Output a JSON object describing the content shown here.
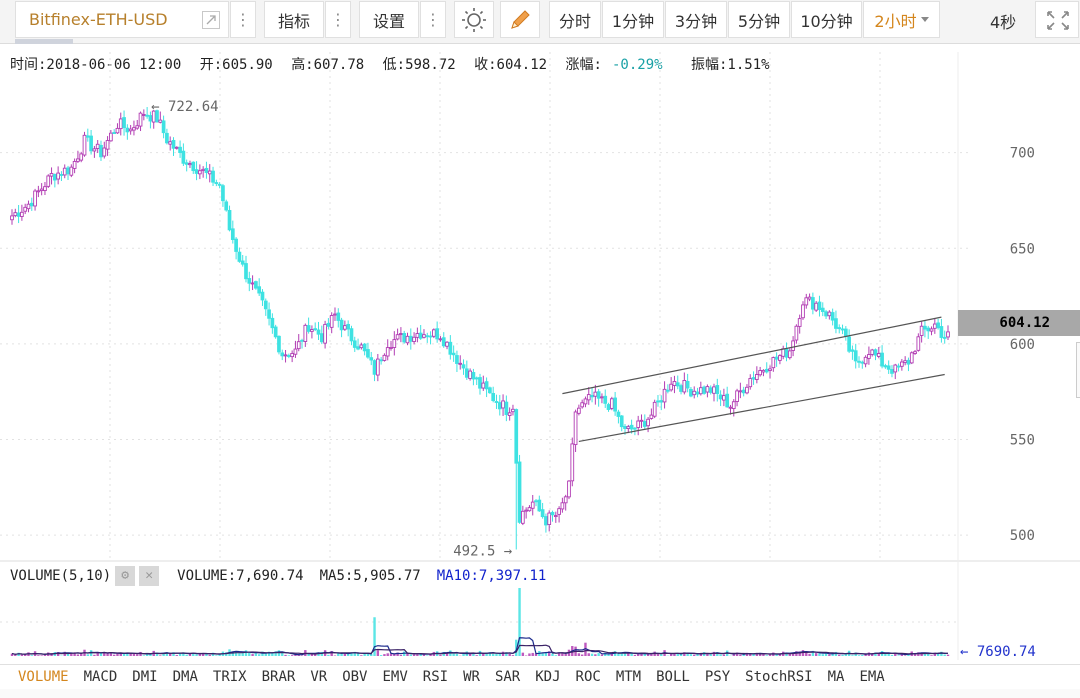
{
  "toolbar": {
    "symbol": "Bitfinex-ETH-USD",
    "indicators_label": "指标",
    "settings_label": "设置",
    "more_glyph": "⋮",
    "periods": [
      "分时",
      "1分钟",
      "3分钟",
      "5分钟",
      "10分钟",
      "2小时"
    ],
    "active_period": "2小时",
    "refresh_interval": "4秒"
  },
  "info": {
    "time": "时间:2018-06-06 12:00",
    "open": "开:605.90",
    "high": "高:607.78",
    "low": "低:598.72",
    "close": "收:604.12",
    "change_label": "涨幅:",
    "change_value": "-0.29%",
    "amplitude": "振幅:1.51%"
  },
  "price_tag": "604.12",
  "annotations": {
    "max_label": "← 722.64",
    "min_label": "492.5 →"
  },
  "volume": {
    "header": "VOLUME(5,10)",
    "gear_glyph": "⚙",
    "close_glyph": "✕",
    "volume": "VOLUME:7,690.74",
    "ma5": "MA5:5,905.77",
    "ma10": "MA10:7,397.11",
    "tag": "← 7690.74"
  },
  "indicator_tabs": [
    "VOLUME",
    "MACD",
    "DMI",
    "DMA",
    "TRIX",
    "BRAR",
    "VR",
    "OBV",
    "EMV",
    "RSI",
    "WR",
    "SAR",
    "KDJ",
    "ROC",
    "MTM",
    "BOLL",
    "PSY",
    "StochRSI",
    "MA",
    "EMA"
  ],
  "active_tab": "VOLUME",
  "colors": {
    "up": "#b23cb3",
    "down": "#3ee2e2",
    "channel": "#555555",
    "ma5": "#1b2a8c",
    "ma10": "#3a2266",
    "active": "#d4861d"
  },
  "chart_data": {
    "type": "candlestick",
    "y_ticks": [
      700,
      650,
      600,
      550,
      500
    ],
    "ylim": [
      487,
      738
    ],
    "max_value": 722.64,
    "min_value": 492.5,
    "last_close": 604.12,
    "grid": true,
    "anchors": [
      [
        0,
        667
      ],
      [
        5,
        673
      ],
      [
        12,
        688
      ],
      [
        18,
        692
      ],
      [
        22,
        706
      ],
      [
        27,
        700
      ],
      [
        32,
        715
      ],
      [
        36,
        712
      ],
      [
        40,
        721
      ],
      [
        44,
        718
      ],
      [
        47,
        707
      ],
      [
        52,
        697
      ],
      [
        58,
        690
      ],
      [
        63,
        683
      ],
      [
        66,
        660
      ],
      [
        70,
        640
      ],
      [
        76,
        620
      ],
      [
        82,
        595
      ],
      [
        86,
        596
      ],
      [
        90,
        610
      ],
      [
        94,
        604
      ],
      [
        98,
        615
      ],
      [
        102,
        605
      ],
      [
        106,
        598
      ],
      [
        110,
        586
      ],
      [
        114,
        601
      ],
      [
        120,
        604
      ],
      [
        124,
        606
      ],
      [
        130,
        605
      ],
      [
        136,
        590
      ],
      [
        142,
        578
      ],
      [
        146,
        572
      ],
      [
        150,
        566
      ],
      [
        152,
        568
      ],
      [
        154,
        510
      ],
      [
        158,
        517
      ],
      [
        162,
        508
      ],
      [
        166,
        511
      ],
      [
        169,
        525
      ],
      [
        171,
        565
      ],
      [
        176,
        572
      ],
      [
        182,
        568
      ],
      [
        186,
        554
      ],
      [
        190,
        557
      ],
      [
        194,
        563
      ],
      [
        200,
        581
      ],
      [
        206,
        576
      ],
      [
        212,
        576
      ],
      [
        218,
        568
      ],
      [
        224,
        582
      ],
      [
        230,
        590
      ],
      [
        236,
        597
      ],
      [
        240,
        623
      ],
      [
        244,
        621
      ],
      [
        248,
        615
      ],
      [
        252,
        605
      ],
      [
        256,
        589
      ],
      [
        260,
        597
      ],
      [
        264,
        590
      ],
      [
        268,
        586
      ],
      [
        272,
        591
      ],
      [
        276,
        606
      ],
      [
        280,
        610
      ],
      [
        283,
        604
      ]
    ],
    "channel_lines": [
      [
        [
          167,
          574
        ],
        [
          282,
          614
        ]
      ],
      [
        [
          172,
          549
        ],
        [
          283,
          584
        ]
      ]
    ],
    "volume_series": "bars plus MA5/MA10 lines"
  }
}
